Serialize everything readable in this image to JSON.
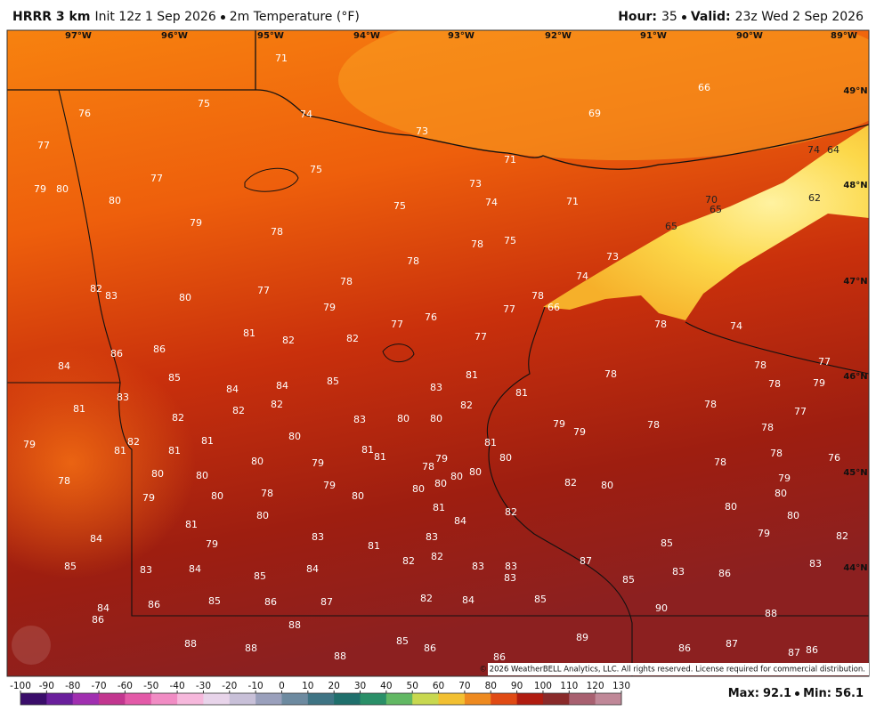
{
  "header": {
    "model": "HRRR 3 km",
    "init": "Init 12z 1 Sep 2026",
    "field": "2m Temperature (°F)",
    "hour_label": "Hour:",
    "hour": 35,
    "valid_label": "Valid:",
    "valid": "23z Wed 2 Sep 2026"
  },
  "map": {
    "longitudes": [
      "97°W",
      "96°W",
      "95°W",
      "94°W",
      "93°W",
      "92°W",
      "91°W",
      "90°W",
      "89°W"
    ],
    "latitudes": [
      "49°N",
      "48°N",
      "47°N",
      "46°N",
      "45°N",
      "44°N"
    ],
    "temperatures": [
      71,
      75,
      76,
      74,
      73,
      66,
      69,
      71,
      77,
      77,
      75,
      73,
      74,
      64,
      79,
      80,
      80,
      74,
      71,
      70,
      65,
      62,
      75,
      79,
      78,
      65,
      78,
      75,
      73,
      78,
      78,
      74,
      82,
      83,
      77,
      80,
      78,
      66,
      79,
      76,
      77,
      77,
      78,
      74,
      81,
      82,
      82,
      77,
      86,
      86,
      84,
      78,
      77,
      85,
      84,
      84,
      85,
      81,
      83,
      81,
      78,
      78,
      79,
      83,
      81,
      82,
      82,
      82,
      82,
      83,
      80,
      80,
      78,
      77,
      79,
      79,
      78,
      78,
      79,
      82,
      81,
      81,
      81,
      80,
      81,
      81,
      81,
      80,
      79,
      78,
      79,
      80,
      78,
      76,
      78,
      78,
      80,
      80,
      80,
      80,
      80,
      80,
      79,
      80,
      78,
      80,
      79,
      82,
      80,
      79,
      80,
      81,
      80,
      82,
      80,
      80,
      81,
      84,
      84,
      79,
      83,
      83,
      81,
      79,
      82,
      85,
      85,
      83,
      84,
      84,
      85,
      82,
      82,
      83,
      83,
      83,
      87,
      83,
      86,
      83,
      85,
      82,
      84,
      85,
      84,
      86,
      85,
      86,
      87,
      90,
      88,
      86,
      88,
      85,
      86,
      88,
      88,
      88,
      89,
      86,
      86,
      87,
      87,
      86
    ],
    "copyright": "© 2026 WeatherBELL Analytics, LLC. All rights reserved. License required for commercial distribution."
  },
  "colorbar": {
    "ticks": [
      -100,
      -90,
      -80,
      -70,
      -60,
      -50,
      -40,
      -30,
      -20,
      -10,
      0,
      10,
      20,
      30,
      40,
      50,
      60,
      70,
      80,
      90,
      100,
      110,
      120,
      130
    ],
    "colors": [
      "#3a0d6a",
      "#6a1f9c",
      "#a02fb0",
      "#c2368f",
      "#e35aa8",
      "#f18cc4",
      "#f6b8dc",
      "#e8d4ea",
      "#c8c0d8",
      "#9aa0bc",
      "#6d8aa0",
      "#3f7484",
      "#1f6f6c",
      "#2a8f68",
      "#62b864",
      "#c8d850",
      "#f2c032",
      "#ee8a20",
      "#e04a14",
      "#b01c10",
      "#8a2a2a",
      "#a86070",
      "#c08898"
    ]
  },
  "footer": {
    "max_label": "Max:",
    "max": 92.1,
    "min_label": "Min:",
    "min": 56.1
  }
}
